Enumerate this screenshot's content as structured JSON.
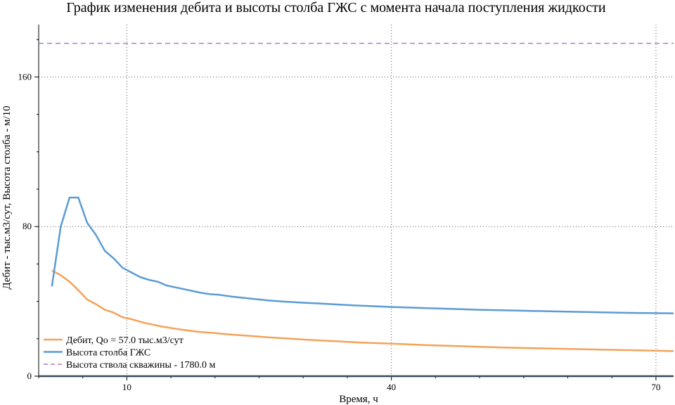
{
  "chart_data": {
    "type": "line",
    "title": "График изменения дебита и высоты столба ГЖС с момента начала поступления жидкости",
    "xlabel": "Время, ч",
    "ylabel": "Дебит - тыс.м3/сут, Высота столба - м/10",
    "xlim": [
      0,
      72
    ],
    "ylim": [
      0,
      188
    ],
    "x_ticks": [
      10,
      40,
      70
    ],
    "y_ticks": [
      0,
      80,
      160
    ],
    "grid": true,
    "legend_position": "bottom-left",
    "series": [
      {
        "name": "Дебит, Qo =  57.0 тыс.м3/сут",
        "color": "#f4a259",
        "style": "solid",
        "x": [
          1.5,
          2.5,
          3.5,
          4.5,
          5.5,
          6.5,
          7.5,
          8.5,
          9.5,
          10.5,
          12,
          14,
          16,
          18,
          20,
          22,
          24,
          26,
          28,
          30,
          32,
          34,
          36,
          38,
          40,
          42,
          44,
          46,
          48,
          50,
          52,
          54,
          56,
          58,
          60,
          62,
          64,
          66,
          68,
          70,
          72
        ],
        "y": [
          56.5,
          54,
          50.5,
          46,
          41,
          38.5,
          35.5,
          34,
          31.5,
          30.5,
          28.5,
          26.5,
          25,
          23.8,
          23,
          22.2,
          21.5,
          20.8,
          20.2,
          19.6,
          19.1,
          18.6,
          18.1,
          17.7,
          17.4,
          17.0,
          16.6,
          16.3,
          16.0,
          15.7,
          15.4,
          15.2,
          15.0,
          14.8,
          14.6,
          14.4,
          14.2,
          14.0,
          13.8,
          13.6,
          13.4
        ]
      },
      {
        "name": "Высота столба ГЖС",
        "color": "#5b9bd5",
        "style": "solid",
        "x": [
          1.5,
          2.5,
          3.5,
          4.5,
          5.5,
          6.5,
          7.5,
          8.5,
          9.5,
          10.5,
          11.5,
          12.5,
          13.5,
          14.5,
          15.5,
          16.5,
          17.5,
          18.5,
          19.5,
          20.5,
          22,
          24,
          26,
          28,
          30,
          32,
          34,
          36,
          38,
          40,
          42,
          44,
          46,
          48,
          50,
          52,
          54,
          56,
          58,
          60,
          62,
          64,
          66,
          68,
          70,
          72
        ],
        "y": [
          48,
          80,
          95.5,
          95.5,
          82,
          75.5,
          67,
          63,
          58,
          55.5,
          53,
          51.5,
          50.5,
          48.5,
          47.5,
          46.5,
          45.5,
          44.5,
          43.8,
          43.5,
          42.5,
          41.5,
          40.5,
          39.8,
          39.3,
          38.8,
          38.3,
          37.8,
          37.4,
          37.0,
          36.7,
          36.4,
          36.1,
          35.8,
          35.5,
          35.3,
          35.1,
          34.9,
          34.7,
          34.5,
          34.3,
          34.1,
          33.9,
          33.8,
          33.7,
          33.6
        ]
      },
      {
        "name": "Высота ствола скважины - 1780.0 м",
        "color": "#b07cc6",
        "style": "dashed",
        "x": [
          0,
          72
        ],
        "y": [
          178,
          178
        ]
      },
      {
        "name": "",
        "color": "#34495e",
        "style": "solid",
        "x": [
          0,
          72
        ],
        "y": [
          0,
          0
        ]
      }
    ]
  }
}
